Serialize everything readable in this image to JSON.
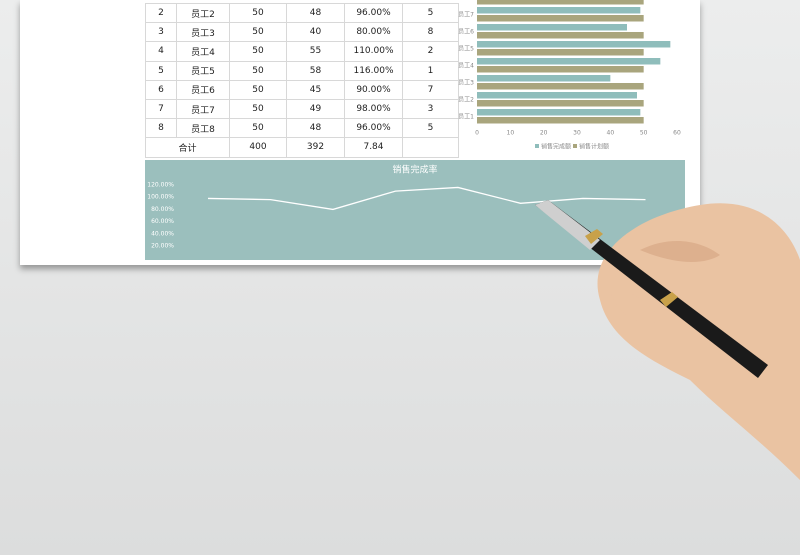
{
  "table": {
    "rows": [
      [
        "2",
        "员工2",
        "50",
        "48",
        "96.00%",
        "5"
      ],
      [
        "3",
        "员工3",
        "50",
        "40",
        "80.00%",
        "8"
      ],
      [
        "4",
        "员工4",
        "50",
        "55",
        "110.00%",
        "2"
      ],
      [
        "5",
        "员工5",
        "50",
        "58",
        "116.00%",
        "1"
      ],
      [
        "6",
        "员工6",
        "50",
        "45",
        "90.00%",
        "7"
      ],
      [
        "7",
        "员工7",
        "50",
        "49",
        "98.00%",
        "3"
      ],
      [
        "8",
        "员工8",
        "50",
        "48",
        "96.00%",
        "5"
      ]
    ],
    "total": [
      "合计",
      "400",
      "392",
      "7.84"
    ]
  },
  "chart_data": [
    {
      "type": "hbar",
      "categories": [
        "员工1",
        "员工2",
        "员工3",
        "员工4",
        "员工5",
        "员工6",
        "员工7",
        null
      ],
      "series": [
        {
          "name": "销售完成额",
          "color": "#8fbdbb",
          "values": [
            49,
            48,
            40,
            55,
            58,
            45,
            49,
            48
          ]
        },
        {
          "name": "销售计划额",
          "color": "#a9a57d",
          "values": [
            50,
            50,
            50,
            50,
            50,
            50,
            50,
            50
          ]
        }
      ],
      "xlim": [
        0,
        60
      ],
      "xticks": [
        0,
        10,
        20,
        30,
        40,
        50,
        60
      ]
    },
    {
      "type": "line",
      "title": "销售完成率",
      "color": "#ffffff",
      "values": [
        98,
        96,
        80,
        110,
        116,
        90,
        98,
        96
      ],
      "ylim": [
        0,
        130
      ],
      "yticks": [
        {
          "value": 20,
          "label": "20.00%"
        },
        {
          "value": 40,
          "label": "40.00%"
        },
        {
          "value": 60,
          "label": "60.00%"
        },
        {
          "value": 80,
          "label": "80.00%"
        },
        {
          "value": 100,
          "label": "100.00%"
        },
        {
          "value": 120,
          "label": "120.00%"
        }
      ]
    }
  ]
}
